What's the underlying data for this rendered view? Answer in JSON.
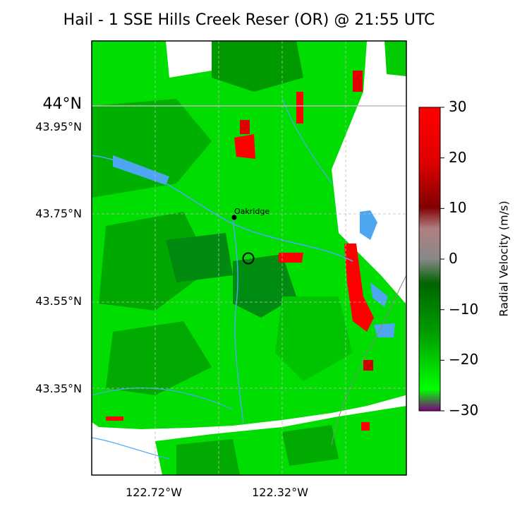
{
  "title": "Hail - 1 SSE Hills Creek Reser (OR) @ 21:55 UTC",
  "map": {
    "lat_labels": [
      "44°N",
      "43.95°N",
      "43.75°N",
      "43.55°N",
      "43.35°N"
    ],
    "lon_labels": [
      "122.72°W",
      "122.32°W"
    ],
    "place_label": "Oakridge",
    "colors": {
      "green_bright": "#00ee00",
      "green_mid": "#00c000",
      "green_dark": "#007a10",
      "red": "#ff0000",
      "water": "#4ea6f0"
    }
  },
  "colorbar": {
    "label": "Radial Velocity (m/s)",
    "ticks": [
      "30",
      "20",
      "10",
      "0",
      "−10",
      "−20",
      "−30"
    ],
    "min": -30,
    "max": 30
  }
}
